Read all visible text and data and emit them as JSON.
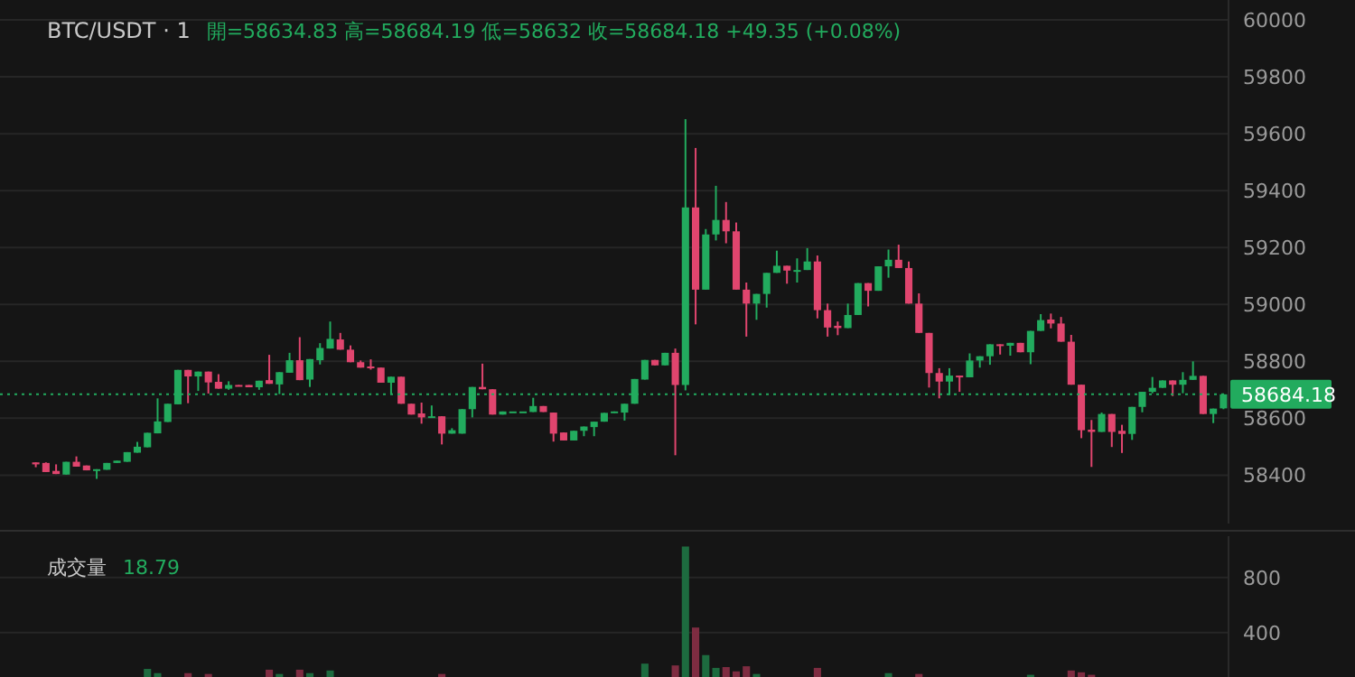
{
  "chart_data": [
    {
      "type": "candlestick",
      "title": "BTC/USDT · 1",
      "subtitle": "開=58634.83 高=58684.19 低=58632 收=58684.18 +49.35 (+0.08%)",
      "categories": [
        null,
        null,
        null,
        null,
        null,
        null,
        null,
        null,
        null,
        null,
        null,
        null,
        null,
        null,
        null,
        null,
        null,
        null,
        null,
        null,
        null,
        null,
        null,
        null,
        null,
        null,
        null,
        null,
        null,
        null,
        null,
        null,
        null,
        null,
        null,
        null,
        null,
        null,
        null,
        null,
        null,
        null,
        null,
        null,
        null,
        null,
        null,
        null,
        null,
        null,
        null,
        null,
        null,
        null,
        null,
        null,
        null,
        null,
        null,
        null,
        null,
        null,
        null,
        null,
        null,
        null,
        null,
        null,
        null,
        null,
        null,
        null,
        null,
        null,
        null,
        null,
        null,
        null,
        null,
        null,
        null,
        null,
        null,
        null,
        null,
        null,
        null,
        null,
        null,
        null,
        null,
        null,
        null,
        null,
        null,
        null,
        null,
        null,
        null,
        null,
        null,
        null,
        null,
        null,
        null,
        null,
        null,
        null,
        null,
        null,
        null,
        null,
        null,
        null,
        null,
        null,
        null,
        null
      ],
      "ohlc": [
        [
          58445,
          58445,
          58428,
          58438
        ],
        [
          58443,
          58445,
          58411,
          58411
        ],
        [
          58415,
          58438,
          58404,
          58404
        ],
        [
          58402,
          58447,
          58402,
          58447
        ],
        [
          58447,
          58466,
          58430,
          58430
        ],
        [
          58434,
          58434,
          58417,
          58417
        ],
        [
          58419,
          58421,
          58387,
          58421
        ],
        [
          58419,
          58443,
          58419,
          58443
        ],
        [
          58443,
          58451,
          58443,
          58451
        ],
        [
          58447,
          58481,
          58447,
          58481
        ],
        [
          58479,
          58517,
          58479,
          58500
        ],
        [
          58498,
          58549,
          58498,
          58549
        ],
        [
          58547,
          58670,
          58547,
          58589
        ],
        [
          58587,
          58651,
          58587,
          58651
        ],
        [
          58649,
          58770,
          58649,
          58770
        ],
        [
          58770,
          58770,
          58653,
          58747
        ],
        [
          58747,
          58764,
          58696,
          58764
        ],
        [
          58764,
          58764,
          58687,
          58726
        ],
        [
          58728,
          58755,
          58704,
          58704
        ],
        [
          58704,
          58730,
          58700,
          58717
        ],
        [
          58717,
          58717,
          58713,
          58713
        ],
        [
          58717,
          58717,
          58709,
          58709
        ],
        [
          58709,
          58732,
          58700,
          58732
        ],
        [
          58734,
          58823,
          58721,
          58721
        ],
        [
          58719,
          58762,
          58685,
          58762
        ],
        [
          58760,
          58830,
          58760,
          58804
        ],
        [
          58804,
          58885,
          58734,
          58734
        ],
        [
          58736,
          58808,
          58710,
          58808
        ],
        [
          58804,
          58864,
          58789,
          58847
        ],
        [
          58845,
          58940,
          58845,
          58879
        ],
        [
          58877,
          58900,
          58841,
          58841
        ],
        [
          58841,
          58856,
          58797,
          58797
        ],
        [
          58797,
          58803,
          58778,
          58778
        ],
        [
          58782,
          58807,
          58771,
          58776
        ],
        [
          58778,
          58778,
          58725,
          58725
        ],
        [
          58725,
          58746,
          58683,
          58746
        ],
        [
          58746,
          58746,
          58651,
          58651
        ],
        [
          58651,
          58651,
          58613,
          58613
        ],
        [
          58617,
          58655,
          58581,
          58603
        ],
        [
          58603,
          58645,
          58603,
          58607
        ],
        [
          58607,
          58607,
          58508,
          58546
        ],
        [
          58546,
          58565,
          58546,
          58558
        ],
        [
          58546,
          58632,
          58546,
          58632
        ],
        [
          58632,
          58710,
          58603,
          58710
        ],
        [
          58710,
          58792,
          58702,
          58702
        ],
        [
          58702,
          58702,
          58613,
          58613
        ],
        [
          58613,
          58624,
          58613,
          58624
        ],
        [
          58624,
          58624,
          58624,
          58624
        ],
        [
          58624,
          58624,
          58624,
          58624
        ],
        [
          58622,
          58672,
          58622,
          58643
        ],
        [
          58643,
          58643,
          58622,
          58622
        ],
        [
          58620,
          58620,
          58518,
          58546
        ],
        [
          58550,
          58550,
          58522,
          58522
        ],
        [
          58522,
          58556,
          58522,
          58556
        ],
        [
          58556,
          58571,
          58537,
          58571
        ],
        [
          58569,
          58588,
          58537,
          58588
        ],
        [
          58588,
          58619,
          58588,
          58619
        ],
        [
          58619,
          58624,
          58619,
          58624
        ],
        [
          58620,
          58651,
          58592,
          58651
        ],
        [
          58651,
          58738,
          58651,
          58738
        ],
        [
          58736,
          58805,
          58736,
          58805
        ],
        [
          58805,
          58805,
          58786,
          58786
        ],
        [
          58786,
          58830,
          58786,
          58830
        ],
        [
          58830,
          58845,
          58470,
          58717
        ],
        [
          58717,
          59651,
          58698,
          59341
        ],
        [
          59341,
          59550,
          58930,
          59052
        ],
        [
          59052,
          59265,
          59052,
          59246
        ],
        [
          59246,
          59417,
          59225,
          59297
        ],
        [
          59297,
          59360,
          59215,
          59257
        ],
        [
          59257,
          59288,
          59052,
          59052
        ],
        [
          59052,
          59077,
          58887,
          59003
        ],
        [
          59003,
          59037,
          58946,
          59037
        ],
        [
          59037,
          59111,
          58989,
          59111
        ],
        [
          59111,
          59189,
          59111,
          59136
        ],
        [
          59136,
          59136,
          59073,
          59119
        ],
        [
          59119,
          59162,
          59077,
          59121
        ],
        [
          59121,
          59198,
          59121,
          59151
        ],
        [
          59151,
          59172,
          58951,
          58980
        ],
        [
          58980,
          59003,
          58887,
          58919
        ],
        [
          58925,
          58940,
          58892,
          58917
        ],
        [
          58917,
          59003,
          58917,
          58963
        ],
        [
          58963,
          59075,
          58963,
          59075
        ],
        [
          59075,
          59075,
          58993,
          59048
        ],
        [
          59048,
          59134,
          59048,
          59134
        ],
        [
          59134,
          59193,
          59094,
          59157
        ],
        [
          59157,
          59210,
          59128,
          59128
        ],
        [
          59128,
          59151,
          59003,
          59003
        ],
        [
          59003,
          59039,
          58900,
          58900
        ],
        [
          58900,
          58900,
          58708,
          58759
        ],
        [
          58759,
          58776,
          58670,
          58729
        ],
        [
          58729,
          58776,
          58681,
          58750
        ],
        [
          58750,
          58750,
          58693,
          58744
        ],
        [
          58744,
          58828,
          58744,
          58803
        ],
        [
          58803,
          58818,
          58778,
          58818
        ],
        [
          58818,
          58860,
          58788,
          58860
        ],
        [
          58860,
          58860,
          58824,
          58854
        ],
        [
          58855,
          58865,
          58820,
          58865
        ],
        [
          58865,
          58865,
          58832,
          58832
        ],
        [
          58832,
          58907,
          58790,
          58907
        ],
        [
          58907,
          58966,
          58907,
          58945
        ],
        [
          58947,
          58968,
          58916,
          58933
        ],
        [
          58933,
          58956,
          58869,
          58869
        ],
        [
          58869,
          58893,
          58718,
          58718
        ],
        [
          58718,
          58718,
          58530,
          58558
        ],
        [
          58560,
          58594,
          58429,
          58552
        ],
        [
          58552,
          58620,
          58552,
          58615
        ],
        [
          58615,
          58615,
          58499,
          58552
        ],
        [
          58556,
          58577,
          58478,
          58545
        ],
        [
          58545,
          58640,
          58524,
          58640
        ],
        [
          58640,
          58693,
          58621,
          58693
        ],
        [
          58693,
          58745,
          58688,
          58707
        ],
        [
          58707,
          58733,
          58707,
          58733
        ],
        [
          58733,
          58733,
          58678,
          58718
        ],
        [
          58718,
          58762,
          58688,
          58735
        ],
        [
          58735,
          58800,
          58735,
          58749
        ],
        [
          58749,
          58749,
          58615,
          58615
        ],
        [
          58615,
          58634,
          58583,
          58634
        ],
        [
          58634.83,
          58684.19,
          58632,
          58684.18
        ]
      ],
      "colors": [
        "#e0456e",
        "#e0456e",
        "#e0456e",
        "#22ab5e",
        "#e0456e",
        "#e0456e",
        "#22ab5e",
        "#22ab5e",
        "#22ab5e",
        "#22ab5e",
        "#22ab5e",
        "#22ab5e",
        "#22ab5e",
        "#22ab5e",
        "#22ab5e",
        "#e0456e",
        "#22ab5e",
        "#e0456e",
        "#e0456e",
        "#22ab5e",
        "#e0456e",
        "#e0456e",
        "#22ab5e",
        "#e0456e",
        "#22ab5e",
        "#22ab5e",
        "#e0456e",
        "#22ab5e",
        "#22ab5e",
        "#22ab5e",
        "#e0456e",
        "#e0456e",
        "#e0456e",
        "#e0456e",
        "#e0456e",
        "#22ab5e",
        "#e0456e",
        "#e0456e",
        "#e0456e",
        "#22ab5e",
        "#e0456e",
        "#22ab5e",
        "#22ab5e",
        "#22ab5e",
        "#e0456e",
        "#e0456e",
        "#22ab5e",
        "#22ab5e",
        "#22ab5e",
        "#22ab5e",
        "#e0456e",
        "#e0456e",
        "#e0456e",
        "#22ab5e",
        "#22ab5e",
        "#22ab5e",
        "#22ab5e",
        "#22ab5e",
        "#22ab5e",
        "#22ab5e",
        "#22ab5e",
        "#e0456e",
        "#22ab5e",
        "#e0456e",
        "#22ab5e",
        "#e0456e",
        "#22ab5e",
        "#22ab5e",
        "#e0456e",
        "#e0456e",
        "#e0456e",
        "#22ab5e",
        "#22ab5e",
        "#22ab5e",
        "#e0456e",
        "#22ab5e",
        "#22ab5e",
        "#e0456e",
        "#e0456e",
        "#e0456e",
        "#22ab5e",
        "#22ab5e",
        "#e0456e",
        "#22ab5e",
        "#22ab5e",
        "#e0456e",
        "#e0456e",
        "#e0456e",
        "#e0456e",
        "#e0456e",
        "#22ab5e",
        "#e0456e",
        "#22ab5e",
        "#22ab5e",
        "#22ab5e",
        "#e0456e",
        "#22ab5e",
        "#e0456e",
        "#22ab5e",
        "#22ab5e",
        "#e0456e",
        "#e0456e",
        "#e0456e",
        "#e0456e",
        "#e0456e",
        "#22ab5e",
        "#e0456e",
        "#e0456e",
        "#22ab5e",
        "#22ab5e",
        "#22ab5e",
        "#22ab5e",
        "#e0456e",
        "#22ab5e",
        "#22ab5e",
        "#e0456e",
        "#22ab5e",
        "#22ab5e"
      ],
      "ylim": [
        58230,
        60070
      ],
      "yticks": [
        58400,
        58600,
        58800,
        59000,
        59200,
        59400,
        59600,
        59800,
        60000
      ],
      "grid": "y",
      "ref_lines": [
        {
          "axis": "y",
          "value": 58684.18,
          "label": "58684.18",
          "color": "#22ab5e",
          "line_style": "dotted"
        }
      ]
    },
    {
      "type": "bar",
      "title": "成交量",
      "subtitle": "18.79",
      "categories": [
        null,
        null,
        null,
        null,
        null,
        null,
        null,
        null,
        null,
        null,
        null,
        null,
        null,
        null,
        null,
        null,
        null,
        null,
        null,
        null,
        null,
        null,
        null,
        null,
        null,
        null,
        null,
        null,
        null,
        null,
        null,
        null,
        null,
        null,
        null,
        null,
        null,
        null,
        null,
        null,
        null,
        null,
        null,
        null,
        null,
        null,
        null,
        null,
        null,
        null,
        null,
        null,
        null,
        null,
        null,
        null,
        null,
        null,
        null,
        null,
        null,
        null,
        null,
        null,
        null,
        null,
        null,
        null,
        null,
        null,
        null,
        null,
        null,
        null,
        null,
        null,
        null,
        null,
        null,
        null,
        null,
        null,
        null,
        null,
        null,
        null,
        null,
        null,
        null,
        null,
        null,
        null,
        null,
        null,
        null,
        null,
        null,
        null,
        null,
        null,
        null,
        null,
        null,
        null,
        null,
        null,
        null,
        null,
        null,
        null,
        null,
        null,
        null,
        null,
        null,
        null,
        null,
        null
      ],
      "values": [
        null,
        null,
        null,
        null,
        null,
        null,
        null,
        null,
        null,
        null,
        null,
        137,
        106,
        null,
        null,
        106,
        null,
        100,
        null,
        null,
        null,
        null,
        null,
        131,
        100,
        null,
        131,
        106,
        null,
        125,
        null,
        null,
        null,
        null,
        null,
        null,
        null,
        null,
        null,
        null,
        100,
        null,
        null,
        null,
        null,
        null,
        null,
        null,
        null,
        null,
        null,
        null,
        null,
        null,
        null,
        null,
        null,
        null,
        null,
        null,
        175,
        null,
        null,
        162,
        1025,
        437,
        237,
        144,
        150,
        119,
        156,
        100,
        null,
        null,
        null,
        null,
        null,
        144,
        null,
        null,
        null,
        null,
        null,
        null,
        106,
        null,
        null,
        100,
        null,
        null,
        null,
        null,
        null,
        null,
        null,
        null,
        null,
        null,
        94,
        null,
        null,
        null,
        125,
        112,
        94,
        null,
        null,
        null,
        null,
        null,
        null,
        null,
        null,
        null,
        null,
        null,
        null,
        null
      ],
      "colors": [
        null,
        null,
        null,
        null,
        null,
        null,
        null,
        null,
        null,
        null,
        null,
        "#1d6b3f",
        "#1d6b3f",
        null,
        null,
        "#7e2c41",
        null,
        "#7e2c41",
        null,
        null,
        null,
        null,
        null,
        "#7e2c41",
        "#1d6b3f",
        null,
        "#7e2c41",
        "#1d6b3f",
        null,
        "#1d6b3f",
        null,
        null,
        null,
        null,
        null,
        null,
        null,
        null,
        null,
        null,
        "#7e2c41",
        null,
        null,
        null,
        null,
        null,
        null,
        null,
        null,
        null,
        null,
        null,
        null,
        null,
        null,
        null,
        null,
        null,
        null,
        null,
        "#1d6b3f",
        null,
        null,
        "#7e2c41",
        "#1d6b3f",
        "#7e2c41",
        "#1d6b3f",
        "#1d6b3f",
        "#7e2c41",
        "#7e2c41",
        "#7e2c41",
        "#1d6b3f",
        null,
        null,
        null,
        null,
        null,
        "#7e2c41",
        null,
        null,
        null,
        null,
        null,
        null,
        "#1d6b3f",
        null,
        null,
        "#7e2c41",
        null,
        null,
        null,
        null,
        null,
        null,
        null,
        null,
        null,
        null,
        "#1d6b3f",
        null,
        null,
        null,
        "#7e2c41",
        "#7e2c41",
        "#7e2c41",
        null,
        null,
        null,
        null,
        null,
        null,
        null,
        null,
        null,
        null,
        null,
        null,
        null
      ],
      "ylim": [
        78,
        1100
      ],
      "yticks": [
        400,
        800
      ],
      "grid": "y"
    }
  ]
}
